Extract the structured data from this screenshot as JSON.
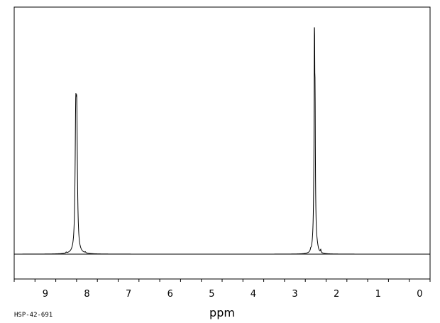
{
  "chart_data": {
    "type": "line",
    "title": "",
    "xlabel": "ppm",
    "ylabel": "",
    "xlim": [
      9.75,
      -0.25
    ],
    "x_reversed": true,
    "ylim": [
      0,
      1
    ],
    "grid": false,
    "x_ticks": [
      9,
      8,
      7,
      6,
      5,
      4,
      3,
      2,
      1,
      0
    ],
    "x_tick_labels": [
      "9",
      "8",
      "7",
      "6",
      "5",
      "4",
      "3",
      "2",
      "1",
      "0"
    ],
    "x_minor_step": 0.5,
    "sample_id": "HSP-42-691",
    "peaks": [
      {
        "ppm": 8.27,
        "height": 0.52,
        "width": 0.018
      },
      {
        "ppm": 8.245,
        "height": 0.51,
        "width": 0.018
      },
      {
        "ppm": 2.53,
        "height": 1.0,
        "width": 0.008
      },
      {
        "ppm": 2.515,
        "height": 0.48,
        "width": 0.008
      },
      {
        "ppm": 2.545,
        "height": 0.1,
        "width": 0.012
      },
      {
        "ppm": 2.5,
        "height": 0.06,
        "width": 0.012
      },
      {
        "ppm": 2.56,
        "height": 0.035,
        "width": 0.03
      },
      {
        "ppm": 2.47,
        "height": 0.03,
        "width": 0.03
      },
      {
        "ppm": 2.62,
        "height": 0.008,
        "width": 0.01
      },
      {
        "ppm": 2.38,
        "height": 0.012,
        "width": 0.008
      },
      {
        "ppm": 8.5,
        "height": 0.004,
        "width": 0.01
      },
      {
        "ppm": 8.04,
        "height": 0.004,
        "width": 0.01
      }
    ]
  }
}
